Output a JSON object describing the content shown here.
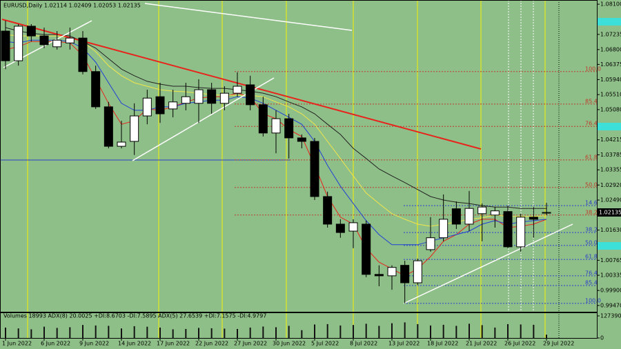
{
  "chart_data": {
    "type": "candlestick",
    "title": "EURUSD,Daily  1.02114 1.02409 1.02053 1.02135",
    "categories": [
      "1 Jun 2022",
      null,
      null,
      "6 Jun 2022",
      null,
      null,
      "9 Jun 2022",
      null,
      null,
      "14 Jun 2022",
      null,
      null,
      "17 Jun 2022",
      null,
      null,
      "22 Jun 2022",
      null,
      null,
      "27 Jun 2022",
      null,
      null,
      "30 Jun 2022",
      null,
      null,
      "5 Jul 2022",
      null,
      null,
      "8 Jul 2022",
      null,
      null,
      "13 Jul 2022",
      null,
      null,
      "18 Jul 2022",
      null,
      null,
      "21 Jul 2022",
      null,
      null,
      "26 Jul 2022",
      null,
      null,
      "29 Jul 2022"
    ],
    "open": [
      1.0733,
      1.0648,
      1.0747,
      1.0719,
      1.0688,
      1.0699,
      1.0713,
      1.0617,
      1.0516,
      1.0403,
      1.0417,
      1.049,
      1.0545,
      1.051,
      1.0526,
      1.0526,
      1.0565,
      1.0526,
      1.0555,
      1.0579,
      1.0522,
      1.0441,
      1.0482,
      1.0427,
      1.0417,
      1.0259,
      1.018,
      1.016,
      1.018,
      1.0036,
      1.0032,
      1.0062,
      1.0012,
      1.0107,
      1.0141,
      1.0224,
      1.018,
      1.021,
      1.0206,
      1.0216,
      1.0115,
      1.02,
      1.02114
    ],
    "high": [
      1.0763,
      1.0753,
      1.0753,
      1.0743,
      1.0733,
      1.0743,
      1.0733,
      1.0634,
      1.053,
      1.0476,
      1.0526,
      1.0565,
      1.0585,
      1.0565,
      1.0585,
      1.0595,
      1.0585,
      1.0575,
      1.0615,
      1.0605,
      1.0545,
      1.0506,
      1.0496,
      1.0437,
      1.0427,
      1.0273,
      1.0194,
      1.0194,
      1.019,
      1.0062,
      1.0062,
      1.0075,
      1.0081,
      1.02,
      1.0265,
      1.0245,
      1.0275,
      1.0239,
      1.0229,
      1.0233,
      1.021,
      1.0229,
      1.02409
    ],
    "low": [
      1.0624,
      1.0634,
      1.0703,
      1.0684,
      1.068,
      1.068,
      1.0609,
      1.051,
      1.0397,
      1.0397,
      1.0378,
      1.0466,
      1.047,
      1.0486,
      1.0506,
      1.047,
      1.0496,
      1.0506,
      1.0545,
      1.0506,
      1.0431,
      1.0383,
      1.0368,
      1.0397,
      1.0249,
      1.017,
      1.0141,
      1.0111,
      1.0028,
      1.0002,
      0.9992,
      0.9953,
      1.0006,
      1.0101,
      1.0131,
      1.0166,
      1.016,
      1.0131,
      1.017,
      1.0111,
      1.0101,
      1.0141,
      1.02053
    ],
    "close": [
      1.0648,
      1.0747,
      1.0719,
      1.0694,
      1.0707,
      1.0713,
      1.0617,
      1.0516,
      1.0403,
      1.0415,
      1.049,
      1.0541,
      1.0496,
      1.053,
      1.0545,
      1.0565,
      1.0526,
      1.0555,
      1.0575,
      1.0522,
      1.0441,
      1.0482,
      1.0427,
      1.0417,
      1.0259,
      1.018,
      1.0156,
      1.0184,
      1.0036,
      1.0032,
      1.0056,
      1.0012,
      1.0075,
      1.0141,
      1.0194,
      1.018,
      1.0225,
      1.0229,
      1.0218,
      1.0115,
      1.02,
      1.0194,
      1.02135
    ],
    "bull_color": "#ffffff",
    "bear_color": "#000000",
    "series": [
      {
        "color": "#e8231b",
        "values": [
          1.068,
          1.0688,
          1.0703,
          1.0703,
          1.0703,
          1.0699,
          1.0664,
          1.0595,
          1.0526,
          1.0466,
          1.0476,
          1.051,
          1.0506,
          1.0516,
          1.053,
          1.0541,
          1.0545,
          1.0545,
          1.0555,
          1.0545,
          1.0496,
          1.0482,
          1.0451,
          1.0431,
          1.0348,
          1.0259,
          1.02,
          1.018,
          1.0111,
          1.0071,
          1.0052,
          1.0032,
          1.0052,
          1.0087,
          1.0131,
          1.015,
          1.018,
          1.0194,
          1.0194,
          1.017,
          1.0174,
          1.018,
          1.0194
        ]
      },
      {
        "color": "#1f3fd6",
        "values": [
          1.0703,
          1.0699,
          1.0707,
          1.0707,
          1.0707,
          1.0703,
          1.0684,
          1.0644,
          1.0585,
          1.0526,
          1.0506,
          1.0506,
          1.0516,
          1.0516,
          1.0526,
          1.053,
          1.0535,
          1.0535,
          1.0545,
          1.0541,
          1.0526,
          1.0506,
          1.0486,
          1.0466,
          1.0417,
          1.0348,
          1.0289,
          1.0239,
          1.019,
          1.015,
          1.0121,
          1.0121,
          1.0121,
          1.0131,
          1.0141,
          1.015,
          1.016,
          1.018,
          1.019,
          1.018,
          1.0186,
          1.019,
          1.0194
        ]
      },
      {
        "color": "#f2e64a",
        "values": [
          1.0723,
          1.0719,
          1.0719,
          1.0719,
          1.0719,
          1.0715,
          1.0703,
          1.0674,
          1.0634,
          1.0605,
          1.0585,
          1.0575,
          1.0565,
          1.0561,
          1.0559,
          1.0555,
          1.0551,
          1.0549,
          1.0549,
          1.0549,
          1.0545,
          1.053,
          1.0516,
          1.0496,
          1.0466,
          1.0417,
          1.0368,
          1.0318,
          1.0269,
          1.0239,
          1.021,
          1.0194,
          1.018,
          1.0174,
          1.018,
          1.0186,
          1.0194,
          1.0198,
          1.0206,
          1.0202,
          1.0202,
          1.0202,
          1.0204
        ]
      },
      {
        "color": "#222222",
        "values": [
          1.0743,
          1.0733,
          1.0727,
          1.0723,
          1.0723,
          1.0719,
          1.0703,
          1.0684,
          1.0654,
          1.0624,
          1.0605,
          1.0589,
          1.0581,
          1.0575,
          1.0575,
          1.0571,
          1.0569,
          1.0569,
          1.0565,
          1.0561,
          1.0555,
          1.0545,
          1.053,
          1.0516,
          1.0496,
          1.0466,
          1.0437,
          1.0397,
          1.0368,
          1.0338,
          1.0318,
          1.0299,
          1.0279,
          1.0259,
          1.0249,
          1.0243,
          1.0239,
          1.0233,
          1.0229,
          1.0229,
          1.0225,
          1.0225,
          1.0225
        ]
      }
    ],
    "ylim": [
      0.9929,
      1.0822
    ],
    "yticks": [
      {
        "value": 1.081,
        "label": "1.08100"
      },
      {
        "value": 1.07235,
        "label": "1.07235"
      },
      {
        "value": 1.068,
        "label": "1.06800"
      },
      {
        "value": 1.06375,
        "label": "1.06375"
      },
      {
        "value": 1.0594,
        "label": "1.05940"
      },
      {
        "value": 1.0551,
        "label": "1.05510"
      },
      {
        "value": 1.0508,
        "label": "1.05080"
      },
      {
        "value": 1.04215,
        "label": "1.04215"
      },
      {
        "value": 1.03785,
        "label": "1.03785"
      },
      {
        "value": 1.03355,
        "label": "1.03355"
      },
      {
        "value": 1.0292,
        "label": "1.02920"
      },
      {
        "value": 1.0249,
        "label": "1.02490"
      },
      {
        "value": 1.0163,
        "label": "1.01630"
      },
      {
        "value": 1.00765,
        "label": "1.00765"
      },
      {
        "value": 1.00335,
        "label": "1.00335"
      },
      {
        "value": 0.999,
        "label": "0.99900"
      },
      {
        "value": 0.9947,
        "label": "0.99470"
      }
    ],
    "last_price": {
      "value": 1.02135,
      "label": "1.02135"
    },
    "fibonacci": [
      {
        "color": "#c0392b",
        "levels": [
          {
            "value": 1.0617,
            "label": "100.0"
          },
          {
            "value": 1.0524,
            "label": "85.4"
          },
          {
            "value": 1.046,
            "label": "76.4"
          },
          {
            "value": 1.0364,
            "label": "61.8"
          },
          {
            "value": 1.0285,
            "label": "50.0"
          },
          {
            "value": 1.0206,
            "label": "38.2"
          }
        ]
      },
      {
        "color": "#2a3fc9",
        "levels": [
          {
            "value": 1.0233,
            "label": "14.6"
          },
          {
            "value": 1.0156,
            "label": "38.2"
          },
          {
            "value": 1.0119,
            "label": "50.0"
          },
          {
            "value": 1.0079,
            "label": "61.8"
          },
          {
            "value": 1.0032,
            "label": "76.4"
          },
          {
            "value": 1.0004,
            "label": "85.4"
          },
          {
            "value": 0.9953,
            "label": "100.0"
          }
        ]
      }
    ],
    "volume": {
      "label": "Volumes 18993  ADX(8) 20.0025 +DI:8.6703 -DI:7.5895  ADX(5) 27.6539 +DI:7.1575 -DI:4.9797",
      "color": "#111111",
      "values": [
        60000,
        55000,
        50000,
        65000,
        58000,
        62000,
        75000,
        72000,
        70000,
        55000,
        68000,
        65000,
        60000,
        50000,
        52000,
        58000,
        56000,
        54000,
        52000,
        60000,
        66000,
        62000,
        70000,
        45000,
        78000,
        80000,
        72000,
        75000,
        82000,
        70000,
        85000,
        90000,
        80000,
        72000,
        76000,
        70000,
        82000,
        74000,
        60000,
        80000,
        78000,
        76000,
        18993
      ],
      "ylim": [
        0,
        127390
      ],
      "yticks": [
        127390,
        0
      ]
    }
  }
}
